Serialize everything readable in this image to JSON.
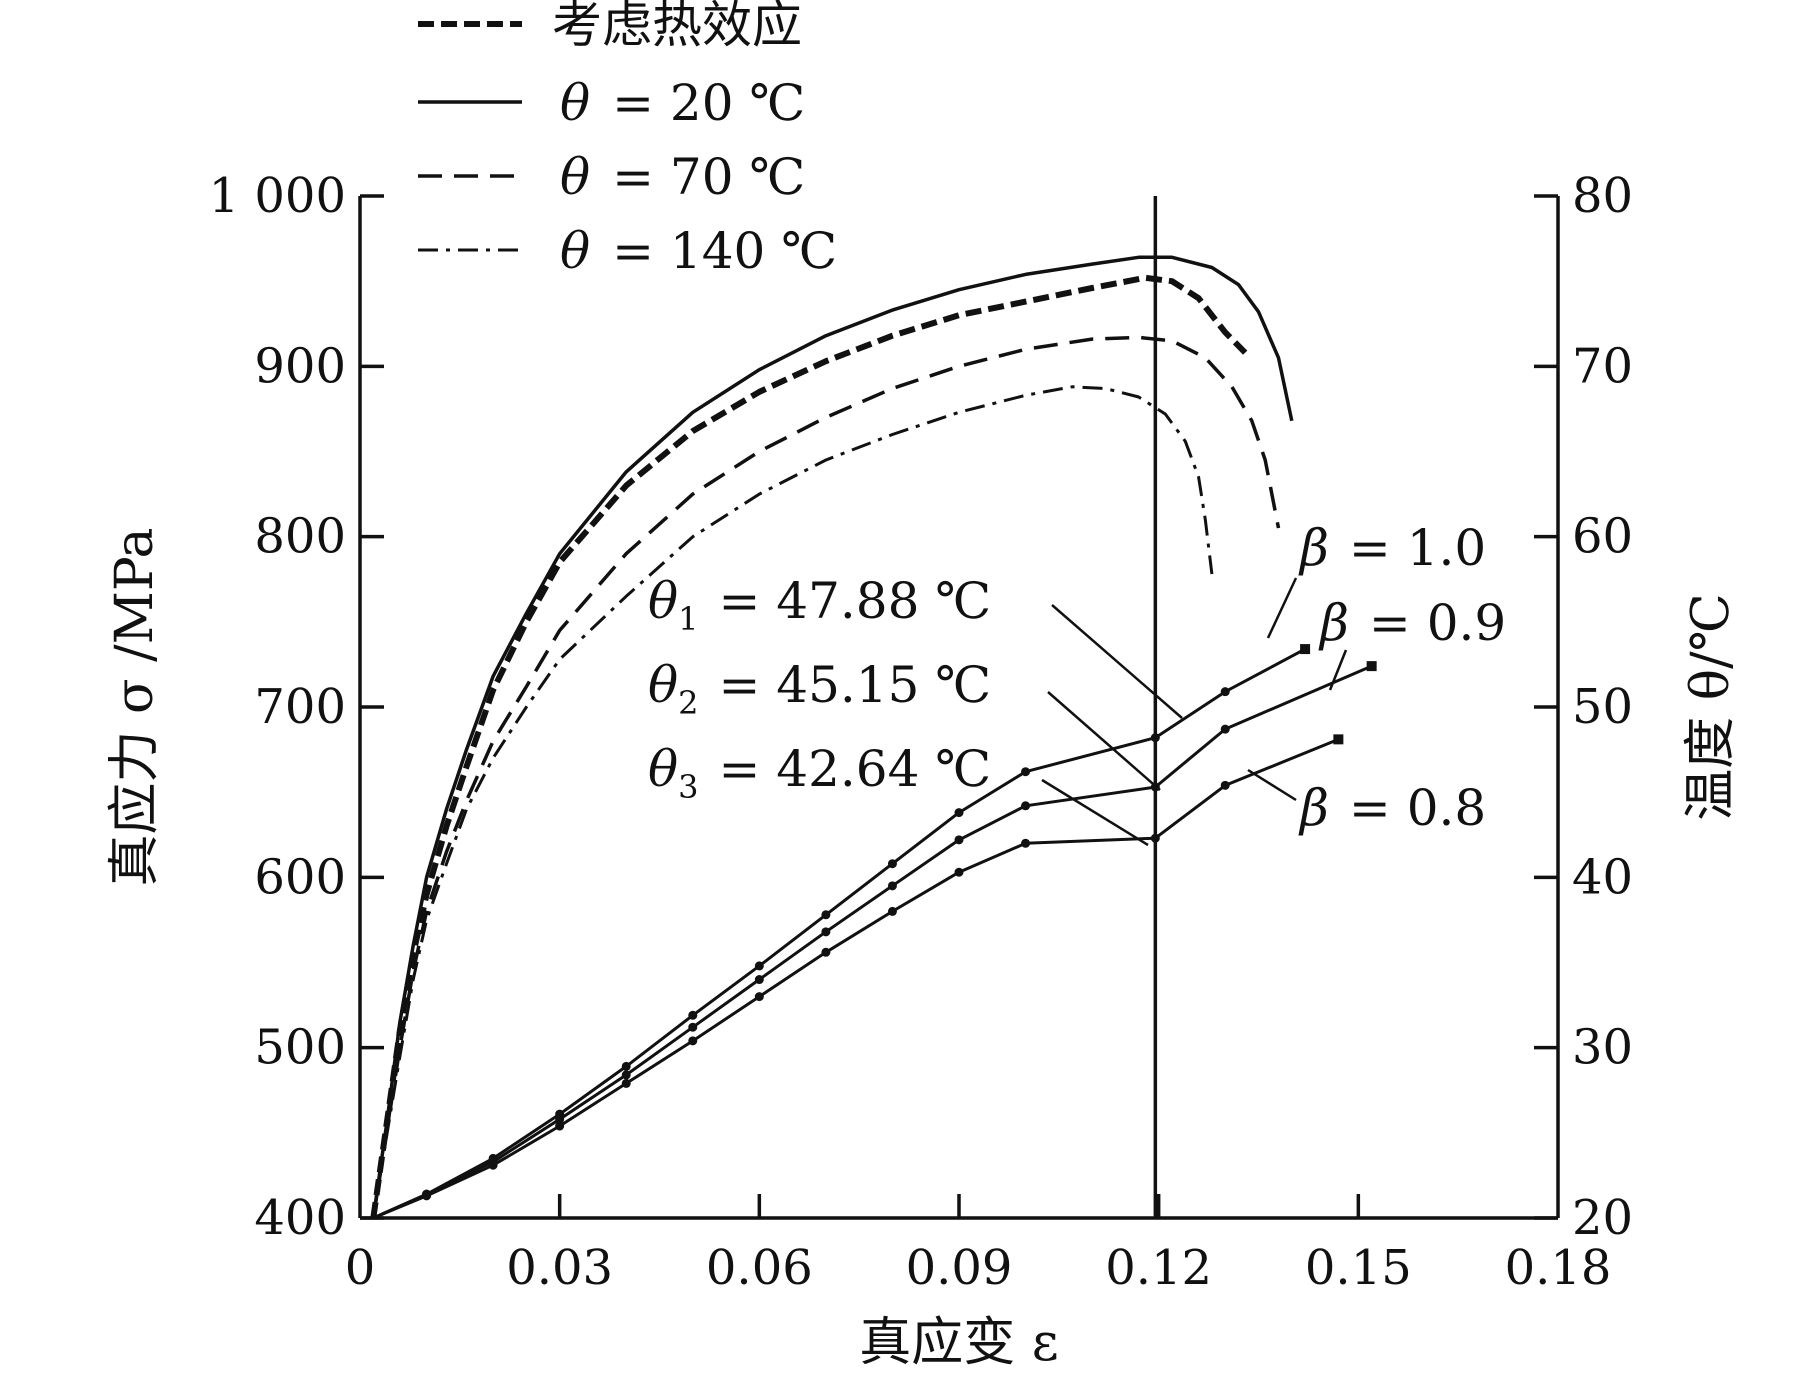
{
  "chart_data": {
    "type": "line",
    "xlabel": "真应变 ε",
    "ylabel_left": "真应力 σ /MPa",
    "ylabel_right": "温度 θ/℃",
    "xlim": [
      0,
      0.18
    ],
    "ylim_left": [
      400,
      1000
    ],
    "ylim_right": [
      20,
      80
    ],
    "x_ticks": [
      "0",
      "0.03",
      "0.06",
      "0.09",
      "0.12",
      "0.15",
      "0.18"
    ],
    "y_left_ticks": [
      "400",
      "500",
      "600",
      "700",
      "800",
      "900",
      "1 000"
    ],
    "y_right_ticks": [
      "20",
      "30",
      "40",
      "50",
      "60",
      "70",
      "80"
    ],
    "legend": [
      {
        "label": "考虑热效应",
        "style": "heavy-dash"
      },
      {
        "label": "θ = 20 ℃",
        "style": "solid"
      },
      {
        "label": "θ = 70 ℃",
        "style": "dash"
      },
      {
        "label": "θ = 140 ℃",
        "style": "dash-dot"
      }
    ],
    "stress_series": [
      {
        "name": "考虑热效应",
        "style": "heavy-dash",
        "axis": "left",
        "points": [
          [
            0.002,
            400
          ],
          [
            0.004,
            455
          ],
          [
            0.006,
            510
          ],
          [
            0.008,
            555
          ],
          [
            0.01,
            590
          ],
          [
            0.013,
            630
          ],
          [
            0.016,
            665
          ],
          [
            0.02,
            710
          ],
          [
            0.025,
            750
          ],
          [
            0.03,
            785
          ],
          [
            0.04,
            830
          ],
          [
            0.05,
            862
          ],
          [
            0.06,
            885
          ],
          [
            0.07,
            903
          ],
          [
            0.08,
            918
          ],
          [
            0.09,
            930
          ],
          [
            0.1,
            938
          ],
          [
            0.11,
            946
          ],
          [
            0.118,
            952
          ],
          [
            0.122,
            950
          ],
          [
            0.126,
            940
          ],
          [
            0.13,
            920
          ],
          [
            0.133,
            908
          ]
        ]
      },
      {
        "name": "θ = 20 ℃",
        "style": "solid",
        "axis": "left",
        "points": [
          [
            0.002,
            400
          ],
          [
            0.004,
            455
          ],
          [
            0.006,
            515
          ],
          [
            0.008,
            560
          ],
          [
            0.01,
            600
          ],
          [
            0.013,
            640
          ],
          [
            0.016,
            675
          ],
          [
            0.02,
            718
          ],
          [
            0.025,
            755
          ],
          [
            0.03,
            790
          ],
          [
            0.04,
            838
          ],
          [
            0.05,
            873
          ],
          [
            0.06,
            898
          ],
          [
            0.07,
            918
          ],
          [
            0.08,
            933
          ],
          [
            0.09,
            945
          ],
          [
            0.1,
            954
          ],
          [
            0.11,
            960
          ],
          [
            0.117,
            964
          ],
          [
            0.122,
            964
          ],
          [
            0.128,
            958
          ],
          [
            0.132,
            948
          ],
          [
            0.135,
            932
          ],
          [
            0.138,
            905
          ],
          [
            0.14,
            868
          ]
        ]
      },
      {
        "name": "θ = 70 ℃",
        "style": "dash",
        "axis": "left",
        "points": [
          [
            0.002,
            400
          ],
          [
            0.004,
            450
          ],
          [
            0.006,
            500
          ],
          [
            0.008,
            545
          ],
          [
            0.01,
            580
          ],
          [
            0.013,
            615
          ],
          [
            0.016,
            645
          ],
          [
            0.02,
            680
          ],
          [
            0.025,
            712
          ],
          [
            0.03,
            745
          ],
          [
            0.04,
            790
          ],
          [
            0.05,
            825
          ],
          [
            0.06,
            850
          ],
          [
            0.07,
            870
          ],
          [
            0.08,
            887
          ],
          [
            0.09,
            900
          ],
          [
            0.1,
            910
          ],
          [
            0.11,
            916
          ],
          [
            0.117,
            917
          ],
          [
            0.122,
            915
          ],
          [
            0.127,
            905
          ],
          [
            0.131,
            888
          ],
          [
            0.134,
            868
          ],
          [
            0.136,
            845
          ],
          [
            0.138,
            805
          ]
        ]
      },
      {
        "name": "θ = 140 ℃",
        "style": "dash-dot",
        "axis": "left",
        "points": [
          [
            0.002,
            400
          ],
          [
            0.004,
            448
          ],
          [
            0.006,
            495
          ],
          [
            0.008,
            540
          ],
          [
            0.01,
            575
          ],
          [
            0.013,
            608
          ],
          [
            0.016,
            640
          ],
          [
            0.02,
            670
          ],
          [
            0.025,
            700
          ],
          [
            0.03,
            728
          ],
          [
            0.04,
            765
          ],
          [
            0.05,
            800
          ],
          [
            0.06,
            825
          ],
          [
            0.07,
            845
          ],
          [
            0.08,
            860
          ],
          [
            0.09,
            873
          ],
          [
            0.1,
            883
          ],
          [
            0.107,
            888
          ],
          [
            0.112,
            887
          ],
          [
            0.117,
            882
          ],
          [
            0.121,
            872
          ],
          [
            0.124,
            856
          ],
          [
            0.126,
            835
          ],
          [
            0.127,
            810
          ],
          [
            0.128,
            778
          ]
        ]
      }
    ],
    "temperature_series": [
      {
        "name": "β = 1.0",
        "axis": "right",
        "points": [
          [
            0.002,
            20
          ],
          [
            0.01,
            21.4
          ],
          [
            0.02,
            23.5
          ],
          [
            0.03,
            26.1
          ],
          [
            0.04,
            28.9
          ],
          [
            0.05,
            31.9
          ],
          [
            0.06,
            34.8
          ],
          [
            0.07,
            37.8
          ],
          [
            0.08,
            40.8
          ],
          [
            0.09,
            43.8
          ],
          [
            0.1,
            46.2
          ],
          [
            0.1195,
            48.2
          ],
          [
            0.13,
            50.9
          ],
          [
            0.142,
            53.4
          ]
        ]
      },
      {
        "name": "β = 0.9",
        "axis": "right",
        "points": [
          [
            0.002,
            20
          ],
          [
            0.01,
            21.4
          ],
          [
            0.02,
            23.3
          ],
          [
            0.03,
            25.8
          ],
          [
            0.04,
            28.4
          ],
          [
            0.05,
            31.2
          ],
          [
            0.06,
            34.0
          ],
          [
            0.07,
            36.8
          ],
          [
            0.08,
            39.5
          ],
          [
            0.09,
            42.2
          ],
          [
            0.1,
            44.2
          ],
          [
            0.1195,
            45.3
          ],
          [
            0.13,
            48.7
          ],
          [
            0.152,
            52.4
          ]
        ]
      },
      {
        "name": "β = 0.8",
        "axis": "right",
        "points": [
          [
            0.002,
            20
          ],
          [
            0.01,
            21.3
          ],
          [
            0.02,
            23.1
          ],
          [
            0.03,
            25.4
          ],
          [
            0.04,
            27.9
          ],
          [
            0.05,
            30.4
          ],
          [
            0.06,
            33.0
          ],
          [
            0.07,
            35.6
          ],
          [
            0.08,
            38.0
          ],
          [
            0.09,
            40.3
          ],
          [
            0.1,
            42.0
          ],
          [
            0.1195,
            42.3
          ],
          [
            0.13,
            45.4
          ],
          [
            0.147,
            48.1
          ]
        ]
      }
    ],
    "vertical_line_x": 0.1195,
    "annotations": {
      "theta1": {
        "symbol": "θ",
        "sub": "1",
        "text": "= 47.88 ℃"
      },
      "theta2": {
        "symbol": "θ",
        "sub": "2",
        "text": "= 45.15 ℃"
      },
      "theta3": {
        "symbol": "θ",
        "sub": "3",
        "text": "= 42.64 ℃"
      },
      "beta10": {
        "symbol": "β",
        "text": "= 1.0"
      },
      "beta09": {
        "symbol": "β",
        "text": "= 0.9"
      },
      "beta08": {
        "symbol": "β",
        "text": "= 0.8"
      }
    },
    "grid": false
  }
}
